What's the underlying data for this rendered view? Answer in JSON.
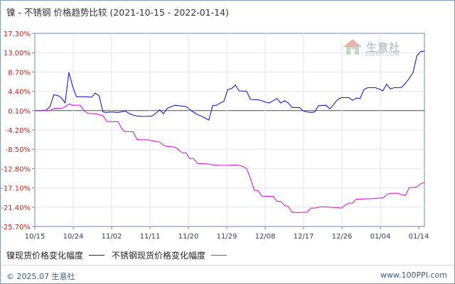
{
  "title": {
    "main": "镍 - 不锈钢 价格趋势比较",
    "range": "(2021-10-15 - 2022-01-14)"
  },
  "logo": {
    "brand": "生意社",
    "domain": "100PPI.COM"
  },
  "footer": {
    "left": "© 2025.07 生意社",
    "right": "www.100PPI.com"
  },
  "colors": {
    "nickel": "#1c1ccc",
    "steel": "#e01adf",
    "axis": "#6c8ab0",
    "grid": "#dfe4ea"
  },
  "chart_data": {
    "type": "line",
    "x": [
      "10/15",
      "10/24",
      "11/02",
      "11/11",
      "11/20",
      "11/29",
      "12/08",
      "12/17",
      "12/26",
      "01/04",
      "01/14"
    ],
    "yticks": [
      "17.30%",
      "13.00%",
      "8.70%",
      "4.40%",
      "0.10%",
      "-4.20%",
      "-8.50%",
      "-12.80%",
      "-17.10%",
      "-21.40%",
      "-25.70%"
    ],
    "ylim": [
      -25.7,
      17.3
    ],
    "x_days": 91,
    "xlabel": "",
    "ylabel": "",
    "series": [
      {
        "name": "镍现货价格变化幅度",
        "color": "#1c1ccc",
        "points": [
          [
            0,
            0.1
          ],
          [
            3,
            0.2
          ],
          [
            4,
            1.0
          ],
          [
            5,
            3.6
          ],
          [
            6,
            3.5
          ],
          [
            7,
            3.0
          ],
          [
            8,
            1.8
          ],
          [
            9,
            8.6
          ],
          [
            10,
            5.5
          ],
          [
            11,
            3.2
          ],
          [
            13,
            3.2
          ],
          [
            15,
            3.1
          ],
          [
            16,
            4.0
          ],
          [
            17,
            3.4
          ],
          [
            18,
            -0.2
          ],
          [
            19,
            -0.3
          ],
          [
            20,
            -0.2
          ],
          [
            22,
            -0.3
          ],
          [
            24,
            0.0
          ],
          [
            25,
            -0.6
          ],
          [
            26,
            -0.9
          ],
          [
            27,
            -1.1
          ],
          [
            29,
            -1.2
          ],
          [
            31,
            -1.1
          ],
          [
            32,
            -0.5
          ],
          [
            33,
            0.3
          ],
          [
            34,
            -0.6
          ],
          [
            35,
            0.6
          ],
          [
            37,
            1.3
          ],
          [
            38,
            1.2
          ],
          [
            40,
            1.0
          ],
          [
            41,
            0.3
          ],
          [
            43,
            -0.8
          ],
          [
            44,
            -1.1
          ],
          [
            46,
            -2.0
          ],
          [
            47,
            1.2
          ],
          [
            48,
            1.3
          ],
          [
            50,
            2.2
          ],
          [
            51,
            4.8
          ],
          [
            52,
            5.0
          ],
          [
            53,
            5.8
          ],
          [
            54,
            4.5
          ],
          [
            56,
            4.4
          ],
          [
            57,
            2.6
          ],
          [
            59,
            2.5
          ],
          [
            60,
            2.3
          ],
          [
            61,
            2.0
          ],
          [
            62,
            1.8
          ],
          [
            64,
            2.8
          ],
          [
            65,
            1.8
          ],
          [
            66,
            2.3
          ],
          [
            67,
            1.8
          ],
          [
            68,
            0.8
          ],
          [
            70,
            0.8
          ],
          [
            71,
            0.0
          ],
          [
            72,
            -0.2
          ],
          [
            73,
            -0.3
          ],
          [
            74,
            -0.2
          ],
          [
            75,
            1.2
          ],
          [
            77,
            1.3
          ],
          [
            78,
            0.5
          ],
          [
            80,
            2.5
          ],
          [
            81,
            3.0
          ],
          [
            83,
            3.0
          ],
          [
            84,
            2.4
          ],
          [
            85,
            2.9
          ],
          [
            86,
            2.8
          ],
          [
            87,
            4.8
          ],
          [
            88,
            5.2
          ],
          [
            90,
            5.2
          ],
          [
            91,
            4.9
          ],
          [
            92,
            4.5
          ],
          [
            93,
            6.0
          ],
          [
            94,
            4.9
          ],
          [
            95,
            5.2
          ],
          [
            96,
            5.2
          ],
          [
            97,
            5.3
          ],
          [
            98,
            6.2
          ],
          [
            99,
            7.3
          ],
          [
            100,
            8.6
          ],
          [
            101,
            12.3
          ],
          [
            102,
            13.3
          ],
          [
            103,
            13.3
          ]
        ]
      },
      {
        "name": "不锈钢现货价格变化幅度",
        "color": "#e01adf",
        "points": [
          [
            0,
            0.1
          ],
          [
            4,
            0.1
          ],
          [
            5,
            0.6
          ],
          [
            6,
            0.6
          ],
          [
            7,
            0.6
          ],
          [
            8,
            0.9
          ],
          [
            9,
            1.6
          ],
          [
            10,
            1.3
          ],
          [
            12,
            1.3
          ],
          [
            13,
            0.1
          ],
          [
            14,
            -0.5
          ],
          [
            16,
            -0.6
          ],
          [
            18,
            -1.0
          ],
          [
            19,
            -2.3
          ],
          [
            21,
            -2.4
          ],
          [
            22,
            -2.3
          ],
          [
            23,
            -4.0
          ],
          [
            24,
            -4.6
          ],
          [
            26,
            -4.6
          ],
          [
            27,
            -6.3
          ],
          [
            28,
            -6.4
          ],
          [
            30,
            -6.4
          ],
          [
            31,
            -6.6
          ],
          [
            33,
            -6.9
          ],
          [
            34,
            -7.6
          ],
          [
            35,
            -7.9
          ],
          [
            37,
            -8.0
          ],
          [
            38,
            -8.6
          ],
          [
            39,
            -9.3
          ],
          [
            40,
            -9.3
          ],
          [
            41,
            -10.6
          ],
          [
            42,
            -10.6
          ],
          [
            43,
            -11.7
          ],
          [
            44,
            -11.7
          ],
          [
            46,
            -11.8
          ],
          [
            47,
            -12.0
          ],
          [
            50,
            -12.1
          ],
          [
            53,
            -12.0
          ],
          [
            54,
            -12.1
          ],
          [
            55,
            -12.3
          ],
          [
            56,
            -12.8
          ],
          [
            57,
            -15.0
          ],
          [
            58,
            -17.6
          ],
          [
            59,
            -17.7
          ],
          [
            60,
            -18.9
          ],
          [
            61,
            -19.0
          ],
          [
            63,
            -19.0
          ],
          [
            64,
            -20.1
          ],
          [
            65,
            -20.1
          ],
          [
            66,
            -21.0
          ],
          [
            67,
            -21.2
          ],
          [
            68,
            -22.5
          ],
          [
            69,
            -22.6
          ],
          [
            70,
            -22.6
          ],
          [
            72,
            -22.5
          ],
          [
            73,
            -21.6
          ],
          [
            74,
            -21.6
          ],
          [
            75,
            -21.4
          ],
          [
            76,
            -21.3
          ],
          [
            78,
            -21.4
          ],
          [
            80,
            -21.5
          ],
          [
            81,
            -21.6
          ],
          [
            82,
            -21.0
          ],
          [
            83,
            -20.5
          ],
          [
            84,
            -20.5
          ],
          [
            85,
            -19.6
          ],
          [
            86,
            -19.6
          ],
          [
            89,
            -19.5
          ],
          [
            91,
            -19.4
          ],
          [
            92,
            -19.4
          ],
          [
            93,
            -18.6
          ],
          [
            94,
            -18.3
          ],
          [
            96,
            -18.3
          ],
          [
            97,
            -18.6
          ],
          [
            98,
            -18.8
          ],
          [
            99,
            -17.0
          ],
          [
            100,
            -17.0
          ],
          [
            101,
            -16.9
          ],
          [
            102,
            -16.2
          ],
          [
            103,
            -15.9
          ]
        ]
      }
    ],
    "grid": true
  }
}
